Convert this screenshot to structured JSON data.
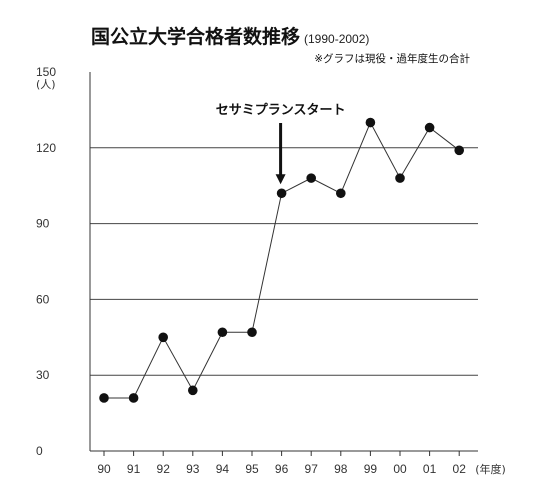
{
  "chart_data": {
    "type": "line",
    "title": "国公立大学合格者数推移",
    "subtitle": "(1990-2002)",
    "note": "※グラフは現役・過年度生の合計",
    "y_unit": "(人)",
    "x_unit": "(年度)",
    "categories": [
      "90",
      "91",
      "92",
      "93",
      "94",
      "95",
      "96",
      "97",
      "98",
      "99",
      "00",
      "01",
      "02"
    ],
    "series": [
      {
        "values": [
          21,
          21,
          45,
          24,
          47,
          47,
          102,
          108,
          102,
          130,
          108,
          128,
          119
        ]
      }
    ],
    "ylim": [
      0,
      150
    ],
    "yticks": [
      "0",
      "30",
      "60",
      "90",
      "120",
      "150"
    ],
    "grid": true,
    "annotation": {
      "text": "セサミプランスタート",
      "category": "96"
    },
    "colors": {
      "line": "#333333",
      "marker": "#111111",
      "grid": "#444444"
    }
  }
}
